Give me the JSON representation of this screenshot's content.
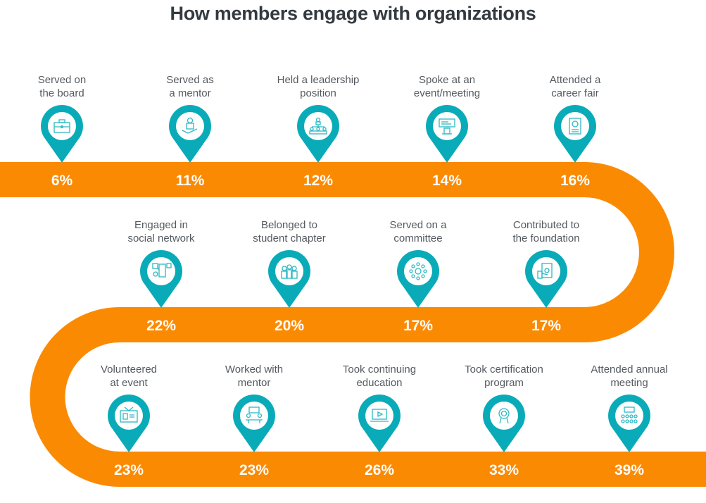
{
  "title": "How members engage with organizations",
  "colors": {
    "path": "#fb8a03",
    "pin": "#0aabb8",
    "icon": "#2bb8c4",
    "label": "#555a60",
    "title": "#333a40"
  },
  "chart_data": {
    "type": "infographic",
    "title": "How members engage with organizations",
    "unit": "%",
    "items": [
      {
        "label": [
          "Served on",
          "the board"
        ],
        "value": "6%",
        "icon": "briefcase-icon"
      },
      {
        "label": [
          "Served as",
          "a mentor"
        ],
        "value": "11%",
        "icon": "mentor-hand-icon"
      },
      {
        "label": [
          "Held a leadership",
          "position"
        ],
        "value": "12%",
        "icon": "org-chart-icon"
      },
      {
        "label": [
          "Spoke at an",
          "event/meeting"
        ],
        "value": "14%",
        "icon": "podium-icon"
      },
      {
        "label": [
          "Attended a",
          "career fair"
        ],
        "value": "16%",
        "icon": "resume-icon"
      },
      {
        "label": [
          "Contributed to",
          "the foundation"
        ],
        "value": "17%",
        "icon": "money-hand-icon"
      },
      {
        "label": [
          "Served on a",
          "committee"
        ],
        "value": "17%",
        "icon": "network-icon"
      },
      {
        "label": [
          "Belonged to",
          "student chapter"
        ],
        "value": "20%",
        "icon": "students-icon"
      },
      {
        "label": [
          "Engaged in",
          "social network"
        ],
        "value": "22%",
        "icon": "social-phone-icon"
      },
      {
        "label": [
          "Volunteered",
          "at event"
        ],
        "value": "23%",
        "icon": "tv-badge-icon"
      },
      {
        "label": [
          "Worked with",
          "mentor"
        ],
        "value": "23%",
        "icon": "meeting-icon"
      },
      {
        "label": [
          "Took continuing",
          "education"
        ],
        "value": "26%",
        "icon": "laptop-video-icon"
      },
      {
        "label": [
          "Took certification",
          "program"
        ],
        "value": "33%",
        "icon": "certificate-icon"
      },
      {
        "label": [
          "Attended annual",
          "meeting"
        ],
        "value": "39%",
        "icon": "audience-icon"
      }
    ]
  }
}
